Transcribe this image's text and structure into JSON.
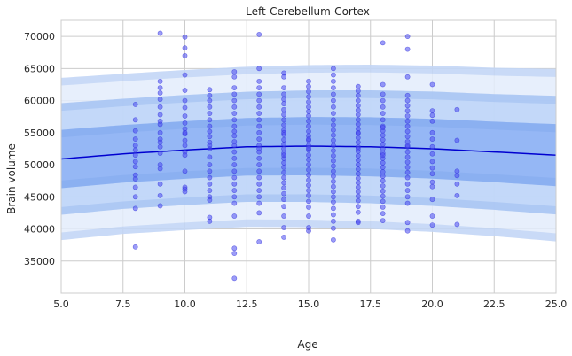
{
  "chart_data": {
    "type": "scatter",
    "title": "Left-Cerebellum-Cortex",
    "xlabel": "Age",
    "ylabel": "Brain volume",
    "xlim": [
      5.0,
      25.0
    ],
    "ylim": [
      30000,
      72500
    ],
    "x_ticks": [
      "5.0",
      "7.5",
      "10.0",
      "12.5",
      "15.0",
      "17.5",
      "20.0",
      "22.5",
      "25.0"
    ],
    "y_ticks": [
      "35000",
      "40000",
      "45000",
      "50000",
      "55000",
      "60000",
      "65000",
      "70000"
    ],
    "grid": true,
    "colors": {
      "points": "#4a4af0",
      "mean_line": "#0000d0",
      "band_inner": "#8db2f5",
      "band_middle": "#bcd3f8",
      "band_outer": "#e3ecfb"
    },
    "fit": {
      "description_x": [
        5,
        7.5,
        10,
        12.5,
        15,
        17.5,
        20,
        22.5,
        25
      ],
      "mean": [
        50900,
        51700,
        52300,
        52800,
        52900,
        52800,
        52500,
        52000,
        51500
      ],
      "sd": [
        3950,
        3900,
        3900,
        3900,
        3950,
        4000,
        4050,
        4100,
        4200
      ]
    },
    "points": [
      [
        8,
        59400
      ],
      [
        8,
        57000
      ],
      [
        8,
        55300
      ],
      [
        8,
        54000
      ],
      [
        8,
        53000
      ],
      [
        8,
        51500
      ],
      [
        8,
        50500
      ],
      [
        8,
        49700
      ],
      [
        8,
        47800
      ],
      [
        8,
        46500
      ],
      [
        8,
        45000
      ],
      [
        8,
        43200
      ],
      [
        8,
        37200
      ],
      [
        8,
        52300
      ],
      [
        8,
        48400
      ],
      [
        9,
        70500
      ],
      [
        9,
        63000
      ],
      [
        9,
        62000
      ],
      [
        9,
        61200
      ],
      [
        9,
        60200
      ],
      [
        9,
        59000
      ],
      [
        9,
        57800
      ],
      [
        9,
        56300
      ],
      [
        9,
        55000
      ],
      [
        9,
        54000
      ],
      [
        9,
        52800
      ],
      [
        9,
        51800
      ],
      [
        9,
        50000
      ],
      [
        9,
        49400
      ],
      [
        9,
        47000
      ],
      [
        9,
        45200
      ],
      [
        9,
        43600
      ],
      [
        9,
        53500
      ],
      [
        9,
        56800
      ],
      [
        10,
        69900
      ],
      [
        10,
        68200
      ],
      [
        10,
        67000
      ],
      [
        10,
        64000
      ],
      [
        10,
        61600
      ],
      [
        10,
        60000
      ],
      [
        10,
        58900
      ],
      [
        10,
        57600
      ],
      [
        10,
        56500
      ],
      [
        10,
        55600
      ],
      [
        10,
        54800
      ],
      [
        10,
        53800
      ],
      [
        10,
        52000
      ],
      [
        10,
        51500
      ],
      [
        10,
        49000
      ],
      [
        10,
        46500
      ],
      [
        10,
        46200
      ],
      [
        10,
        45800
      ],
      [
        10,
        55000
      ],
      [
        10,
        53000
      ],
      [
        11,
        61700
      ],
      [
        11,
        60800
      ],
      [
        11,
        60000
      ],
      [
        11,
        59000
      ],
      [
        11,
        58000
      ],
      [
        11,
        57000
      ],
      [
        11,
        56000
      ],
      [
        11,
        55200
      ],
      [
        11,
        54400
      ],
      [
        11,
        53500
      ],
      [
        11,
        52500
      ],
      [
        11,
        51200
      ],
      [
        11,
        50000
      ],
      [
        11,
        49000
      ],
      [
        11,
        48000
      ],
      [
        11,
        47000
      ],
      [
        11,
        46000
      ],
      [
        11,
        45000
      ],
      [
        11,
        44500
      ],
      [
        11,
        41800
      ],
      [
        11,
        41200
      ],
      [
        11,
        53000
      ],
      [
        12,
        64500
      ],
      [
        12,
        63700
      ],
      [
        12,
        62000
      ],
      [
        12,
        61000
      ],
      [
        12,
        60000
      ],
      [
        12,
        59000
      ],
      [
        12,
        58000
      ],
      [
        12,
        57000
      ],
      [
        12,
        56000
      ],
      [
        12,
        55200
      ],
      [
        12,
        54500
      ],
      [
        12,
        53600
      ],
      [
        12,
        53000
      ],
      [
        12,
        52000
      ],
      [
        12,
        51000
      ],
      [
        12,
        50000
      ],
      [
        12,
        49000
      ],
      [
        12,
        48000
      ],
      [
        12,
        47000
      ],
      [
        12,
        46000
      ],
      [
        12,
        45000
      ],
      [
        12,
        44000
      ],
      [
        12,
        42000
      ],
      [
        12,
        37000
      ],
      [
        12,
        36200
      ],
      [
        12,
        32300
      ],
      [
        13,
        70300
      ],
      [
        13,
        65000
      ],
      [
        13,
        63000
      ],
      [
        13,
        62000
      ],
      [
        13,
        61000
      ],
      [
        13,
        60000
      ],
      [
        13,
        59000
      ],
      [
        13,
        58000
      ],
      [
        13,
        57000
      ],
      [
        13,
        56000
      ],
      [
        13,
        55000
      ],
      [
        13,
        54000
      ],
      [
        13,
        53000
      ],
      [
        13,
        52000
      ],
      [
        13,
        51000
      ],
      [
        13,
        50000
      ],
      [
        13,
        49000
      ],
      [
        13,
        48000
      ],
      [
        13,
        47000
      ],
      [
        13,
        46000
      ],
      [
        13,
        45000
      ],
      [
        13,
        44000
      ],
      [
        13,
        42500
      ],
      [
        13,
        38000
      ],
      [
        13,
        52500
      ],
      [
        14,
        64300
      ],
      [
        14,
        63700
      ],
      [
        14,
        62000
      ],
      [
        14,
        61000
      ],
      [
        14,
        60200
      ],
      [
        14,
        59500
      ],
      [
        14,
        58600
      ],
      [
        14,
        57800
      ],
      [
        14,
        57000
      ],
      [
        14,
        56200
      ],
      [
        14,
        55400
      ],
      [
        14,
        54700
      ],
      [
        14,
        53900
      ],
      [
        14,
        53200
      ],
      [
        14,
        52500
      ],
      [
        14,
        51800
      ],
      [
        14,
        51000
      ],
      [
        14,
        50300
      ],
      [
        14,
        49600
      ],
      [
        14,
        48800
      ],
      [
        14,
        48000
      ],
      [
        14,
        47200
      ],
      [
        14,
        46400
      ],
      [
        14,
        45500
      ],
      [
        14,
        44600
      ],
      [
        14,
        43500
      ],
      [
        14,
        42000
      ],
      [
        14,
        40200
      ],
      [
        14,
        38700
      ],
      [
        14,
        55000
      ],
      [
        14,
        51500
      ],
      [
        15,
        63000
      ],
      [
        15,
        62200
      ],
      [
        15,
        61400
      ],
      [
        15,
        60600
      ],
      [
        15,
        59800
      ],
      [
        15,
        59000
      ],
      [
        15,
        58300
      ],
      [
        15,
        57600
      ],
      [
        15,
        56800
      ],
      [
        15,
        56000
      ],
      [
        15,
        55200
      ],
      [
        15,
        54500
      ],
      [
        15,
        53800
      ],
      [
        15,
        53000
      ],
      [
        15,
        52300
      ],
      [
        15,
        51500
      ],
      [
        15,
        50800
      ],
      [
        15,
        50000
      ],
      [
        15,
        49200
      ],
      [
        15,
        48400
      ],
      [
        15,
        47600
      ],
      [
        15,
        46800
      ],
      [
        15,
        46000
      ],
      [
        15,
        45200
      ],
      [
        15,
        44300
      ],
      [
        15,
        43400
      ],
      [
        15,
        42000
      ],
      [
        15,
        40200
      ],
      [
        15,
        39700
      ],
      [
        15,
        54000
      ],
      [
        15,
        52600
      ],
      [
        16,
        65000
      ],
      [
        16,
        64000
      ],
      [
        16,
        63000
      ],
      [
        16,
        62000
      ],
      [
        16,
        61000
      ],
      [
        16,
        60000
      ],
      [
        16,
        59000
      ],
      [
        16,
        58000
      ],
      [
        16,
        57000
      ],
      [
        16,
        56200
      ],
      [
        16,
        55400
      ],
      [
        16,
        54600
      ],
      [
        16,
        53800
      ],
      [
        16,
        53000
      ],
      [
        16,
        52200
      ],
      [
        16,
        51400
      ],
      [
        16,
        50600
      ],
      [
        16,
        49800
      ],
      [
        16,
        49000
      ],
      [
        16,
        48200
      ],
      [
        16,
        47400
      ],
      [
        16,
        46600
      ],
      [
        16,
        45800
      ],
      [
        16,
        45000
      ],
      [
        16,
        44200
      ],
      [
        16,
        43200
      ],
      [
        16,
        42200
      ],
      [
        16,
        41200
      ],
      [
        16,
        40100
      ],
      [
        16,
        38300
      ],
      [
        17,
        62200
      ],
      [
        17,
        61500
      ],
      [
        17,
        60800
      ],
      [
        17,
        60000
      ],
      [
        17,
        59200
      ],
      [
        17,
        58500
      ],
      [
        17,
        57800
      ],
      [
        17,
        57000
      ],
      [
        17,
        56300
      ],
      [
        17,
        55600
      ],
      [
        17,
        54900
      ],
      [
        17,
        54200
      ],
      [
        17,
        53500
      ],
      [
        17,
        52800
      ],
      [
        17,
        52100
      ],
      [
        17,
        51400
      ],
      [
        17,
        50700
      ],
      [
        17,
        50000
      ],
      [
        17,
        49300
      ],
      [
        17,
        48600
      ],
      [
        17,
        47900
      ],
      [
        17,
        47200
      ],
      [
        17,
        46500
      ],
      [
        17,
        45800
      ],
      [
        17,
        45100
      ],
      [
        17,
        44400
      ],
      [
        17,
        43500
      ],
      [
        17,
        42600
      ],
      [
        17,
        41200
      ],
      [
        17,
        41000
      ],
      [
        17,
        55000
      ],
      [
        17,
        52500
      ],
      [
        18,
        69000
      ],
      [
        18,
        62500
      ],
      [
        18,
        61000
      ],
      [
        18,
        60000
      ],
      [
        18,
        59000
      ],
      [
        18,
        58000
      ],
      [
        18,
        57000
      ],
      [
        18,
        56000
      ],
      [
        18,
        55300
      ],
      [
        18,
        54600
      ],
      [
        18,
        53900
      ],
      [
        18,
        53200
      ],
      [
        18,
        52500
      ],
      [
        18,
        51800
      ],
      [
        18,
        51000
      ],
      [
        18,
        50300
      ],
      [
        18,
        49600
      ],
      [
        18,
        48900
      ],
      [
        18,
        48200
      ],
      [
        18,
        47500
      ],
      [
        18,
        46700
      ],
      [
        18,
        45900
      ],
      [
        18,
        45100
      ],
      [
        18,
        44300
      ],
      [
        18,
        43400
      ],
      [
        18,
        42400
      ],
      [
        18,
        41300
      ],
      [
        18,
        55800
      ],
      [
        18,
        51500
      ],
      [
        19,
        70000
      ],
      [
        19,
        68000
      ],
      [
        19,
        63700
      ],
      [
        19,
        60800
      ],
      [
        19,
        60000
      ],
      [
        19,
        59200
      ],
      [
        19,
        58400
      ],
      [
        19,
        57600
      ],
      [
        19,
        56800
      ],
      [
        19,
        56000
      ],
      [
        19,
        55200
      ],
      [
        19,
        54400
      ],
      [
        19,
        53600
      ],
      [
        19,
        52800
      ],
      [
        19,
        52000
      ],
      [
        19,
        51200
      ],
      [
        19,
        50400
      ],
      [
        19,
        49600
      ],
      [
        19,
        48800
      ],
      [
        19,
        48000
      ],
      [
        19,
        47000
      ],
      [
        19,
        46000
      ],
      [
        19,
        45000
      ],
      [
        19,
        44000
      ],
      [
        19,
        41000
      ],
      [
        19,
        39700
      ],
      [
        19,
        53000
      ],
      [
        20,
        62500
      ],
      [
        20,
        58400
      ],
      [
        20,
        57700
      ],
      [
        20,
        56800
      ],
      [
        20,
        55000
      ],
      [
        20,
        54000
      ],
      [
        20,
        52800
      ],
      [
        20,
        51700
      ],
      [
        20,
        50500
      ],
      [
        20,
        49500
      ],
      [
        20,
        48600
      ],
      [
        20,
        47300
      ],
      [
        20,
        46600
      ],
      [
        20,
        44600
      ],
      [
        20,
        42000
      ],
      [
        20,
        40600
      ],
      [
        21,
        58600
      ],
      [
        21,
        53800
      ],
      [
        21,
        49000
      ],
      [
        21,
        48300
      ],
      [
        21,
        47000
      ],
      [
        21,
        45200
      ],
      [
        21,
        40700
      ]
    ]
  }
}
